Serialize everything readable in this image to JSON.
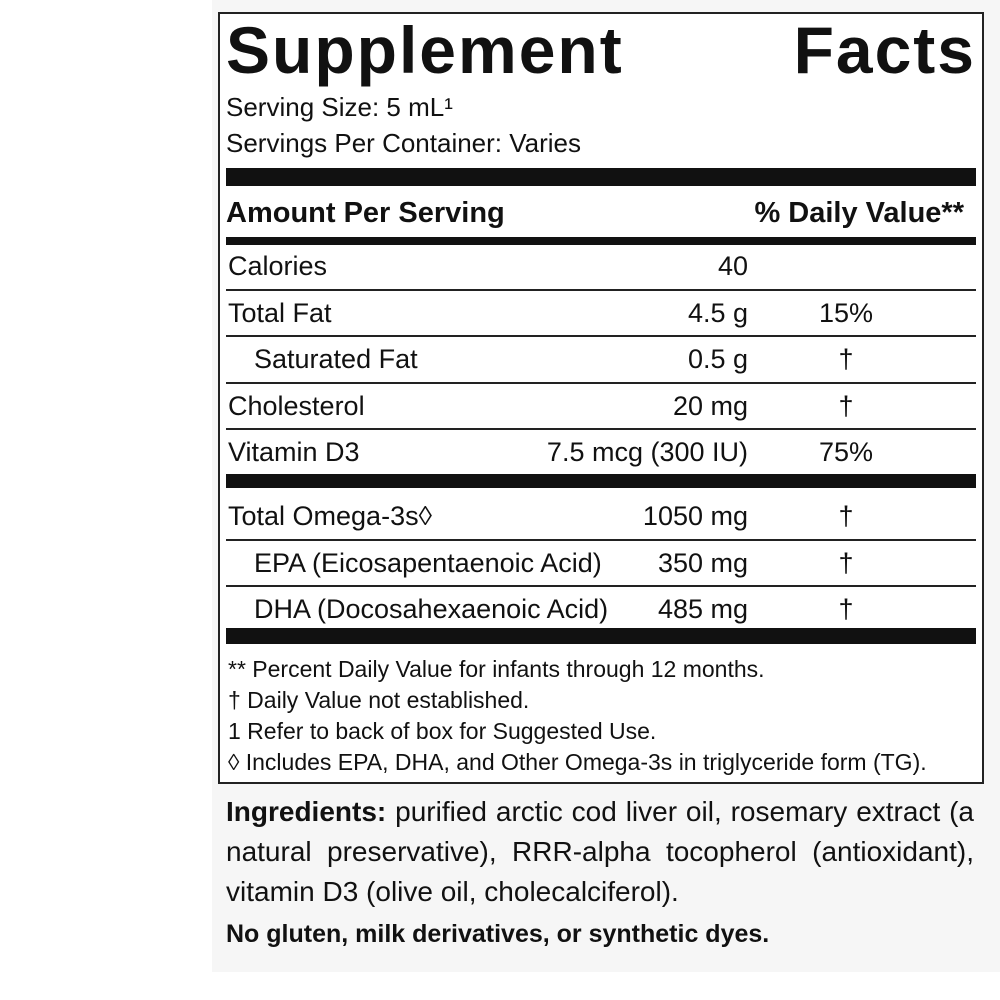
{
  "title": "Supplement Facts",
  "serving_size": "Serving Size: 5 mL¹",
  "servings_per_container": "Servings Per Container: Varies",
  "header": {
    "amount": "Amount Per Serving",
    "daily_value": "% Daily Value**"
  },
  "nutrients": [
    {
      "name": "Calories",
      "amount": "40"
    },
    {
      "name": "Total Fat",
      "amount": "4.5 g",
      "dv": "15%"
    },
    {
      "name": "Saturated Fat",
      "amount": "0.5 g",
      "dv": "†",
      "indent": true
    },
    {
      "name": "Cholesterol",
      "amount": "20 mg",
      "dv": "†"
    },
    {
      "name": "Vitamin D3",
      "amount": "7.5 mcg (300 IU)",
      "dv": "75%"
    }
  ],
  "omega": [
    {
      "name": "Total Omega-3s◊",
      "amount": "1050 mg",
      "dv": "†"
    },
    {
      "name": "EPA (Eicosapentaenoic Acid)",
      "amount": "350 mg",
      "dv": "†",
      "indent": true
    },
    {
      "name": "DHA (Docosahexaenoic Acid)",
      "amount": "485 mg",
      "dv": "†",
      "indent": true
    }
  ],
  "footnotes": [
    "** Percent Daily Value for infants through 12 months.",
    "† Daily Value not established.",
    "1 Refer to back of box for Suggested Use.",
    "◊ Includes EPA, DHA, and Other Omega-3s in triglyceride form (TG)."
  ],
  "ingredients": {
    "label": "Ingredients:",
    "text": "purified arctic cod liver oil, rosemary extract (a natural preservative), RRR-alpha tocopherol (antioxidant), vitamin D3 (olive oil, cholecalciferol)."
  },
  "free_from": "No gluten, milk derivatives, or synthetic dyes."
}
